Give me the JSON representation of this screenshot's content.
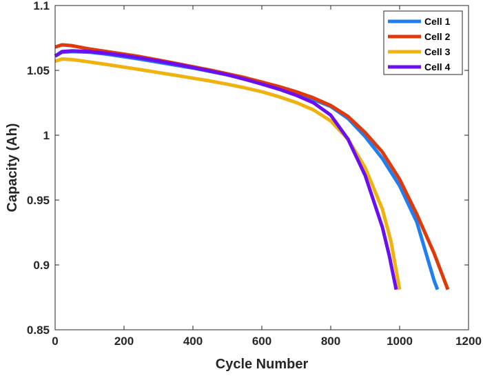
{
  "chart_data": {
    "type": "line",
    "title": "",
    "xlabel": "Cycle Number",
    "ylabel": "Capacity (Ah)",
    "xlim": [
      0,
      1200
    ],
    "ylim": [
      0.85,
      1.1
    ],
    "xticks": [
      0,
      200,
      400,
      600,
      800,
      1000,
      1200
    ],
    "yticks": [
      0.85,
      0.9,
      0.95,
      1,
      1.05,
      1.1
    ],
    "xtick_labels": [
      "0",
      "200",
      "400",
      "600",
      "800",
      "1000",
      "1200"
    ],
    "ytick_labels": [
      "0.85",
      "0.9",
      "0.95",
      "1",
      "1.05",
      "1.1"
    ],
    "grid": false,
    "legend_position": "top-right",
    "series": [
      {
        "name": "Cell 1",
        "color": "#1f7ef2",
        "x": [
          0,
          20,
          50,
          100,
          150,
          200,
          250,
          300,
          350,
          400,
          450,
          500,
          550,
          600,
          650,
          700,
          750,
          800,
          850,
          900,
          950,
          1000,
          1050,
          1100,
          1110
        ],
        "y": [
          1.061,
          1.064,
          1.0645,
          1.064,
          1.0625,
          1.0605,
          1.0585,
          1.0562,
          1.054,
          1.0518,
          1.0492,
          1.0466,
          1.0437,
          1.0404,
          1.0366,
          1.0322,
          1.0275,
          1.0222,
          1.013,
          0.999,
          0.982,
          0.961,
          0.933,
          0.888,
          0.881
        ]
      },
      {
        "name": "Cell 2",
        "color": "#e03a0a",
        "x": [
          0,
          20,
          50,
          100,
          150,
          200,
          250,
          300,
          350,
          400,
          450,
          500,
          550,
          600,
          650,
          700,
          750,
          800,
          850,
          900,
          950,
          1000,
          1050,
          1100,
          1140
        ],
        "y": [
          1.068,
          1.0697,
          1.069,
          1.0665,
          1.0645,
          1.0625,
          1.0604,
          1.0579,
          1.0554,
          1.0528,
          1.0502,
          1.0474,
          1.0444,
          1.041,
          1.0375,
          1.0335,
          1.0288,
          1.0229,
          1.0145,
          1.002,
          0.987,
          0.966,
          0.939,
          0.909,
          0.881
        ]
      },
      {
        "name": "Cell 3",
        "color": "#f0b20f",
        "x": [
          0,
          20,
          50,
          100,
          150,
          200,
          250,
          300,
          350,
          400,
          450,
          500,
          550,
          600,
          650,
          700,
          750,
          800,
          850,
          900,
          950,
          975,
          1000
        ],
        "y": [
          1.057,
          1.0588,
          1.0583,
          1.0565,
          1.0545,
          1.0525,
          1.0505,
          1.0483,
          1.0462,
          1.044,
          1.0418,
          1.0393,
          1.0366,
          1.0335,
          1.0297,
          1.0252,
          1.0195,
          1.011,
          0.997,
          0.975,
          0.943,
          0.918,
          0.881
        ]
      },
      {
        "name": "Cell 4",
        "color": "#6a0ff0",
        "x": [
          0,
          20,
          50,
          100,
          150,
          200,
          250,
          300,
          350,
          400,
          450,
          500,
          550,
          600,
          650,
          700,
          750,
          800,
          850,
          900,
          950,
          970,
          990
        ],
        "y": [
          1.061,
          1.0645,
          1.065,
          1.0645,
          1.0632,
          1.0614,
          1.0594,
          1.0572,
          1.0548,
          1.0522,
          1.0495,
          1.0466,
          1.0432,
          1.0394,
          1.0355,
          1.0308,
          1.025,
          1.0155,
          0.997,
          0.969,
          0.929,
          0.907,
          0.881
        ]
      }
    ]
  }
}
